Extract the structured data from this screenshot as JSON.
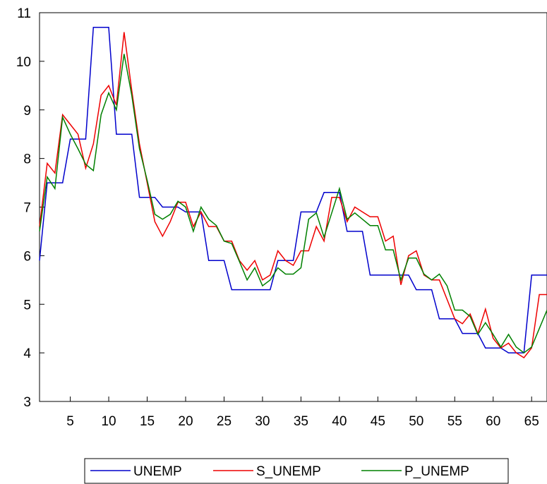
{
  "chart_data": {
    "type": "line",
    "title": "",
    "xlabel": "",
    "ylabel": "",
    "x": [
      1,
      2,
      3,
      4,
      5,
      6,
      7,
      8,
      9,
      10,
      11,
      12,
      13,
      14,
      15,
      16,
      17,
      18,
      19,
      20,
      21,
      22,
      23,
      24,
      25,
      26,
      27,
      28,
      29,
      30,
      31,
      32,
      33,
      34,
      35,
      36,
      37,
      38,
      39,
      40,
      41,
      42,
      43,
      44,
      45,
      46,
      47,
      48,
      49,
      50,
      51,
      52,
      53,
      54,
      55,
      56,
      57,
      58,
      59,
      60,
      61,
      62,
      63,
      64,
      65,
      66,
      67
    ],
    "xlim": [
      1,
      67
    ],
    "ylim": [
      3,
      11
    ],
    "x_ticks": [
      5,
      10,
      15,
      20,
      25,
      30,
      35,
      40,
      45,
      50,
      55,
      60,
      65
    ],
    "y_ticks": [
      3,
      4,
      5,
      6,
      7,
      8,
      9,
      10,
      11
    ],
    "x_tick_labels": [
      "5",
      "10",
      "15",
      "20",
      "25",
      "30",
      "35",
      "40",
      "45",
      "50",
      "55",
      "60",
      "65"
    ],
    "y_tick_labels": [
      "3",
      "4",
      "5",
      "6",
      "7",
      "8",
      "9",
      "10",
      "11"
    ],
    "grid": false,
    "legend_position": "bottom-center",
    "series": [
      {
        "name": "UNEMP",
        "color": "#0000cc",
        "values": [
          5.9,
          7.5,
          7.5,
          7.5,
          8.4,
          8.4,
          8.4,
          10.7,
          10.7,
          10.7,
          8.5,
          8.5,
          8.5,
          7.2,
          7.2,
          7.2,
          7.0,
          7.0,
          7.0,
          6.9,
          6.9,
          6.9,
          5.9,
          5.9,
          5.9,
          5.3,
          5.3,
          5.3,
          5.3,
          5.3,
          5.3,
          5.9,
          5.9,
          5.9,
          6.9,
          6.9,
          6.9,
          7.3,
          7.3,
          7.3,
          6.5,
          6.5,
          6.5,
          5.6,
          5.6,
          5.6,
          5.6,
          5.6,
          5.6,
          5.3,
          5.3,
          5.3,
          4.7,
          4.7,
          4.7,
          4.4,
          4.4,
          4.4,
          4.1,
          4.1,
          4.1,
          4.0,
          4.0,
          4.0,
          5.6,
          5.6,
          5.6
        ]
      },
      {
        "name": "S_UNEMP",
        "color": "#ee0000",
        "values": [
          6.6,
          7.9,
          7.7,
          8.9,
          8.7,
          8.5,
          7.8,
          8.3,
          9.3,
          9.5,
          9.1,
          10.6,
          9.4,
          8.3,
          7.5,
          6.7,
          6.4,
          6.7,
          7.1,
          7.1,
          6.6,
          6.9,
          6.6,
          6.6,
          6.3,
          6.3,
          5.9,
          5.7,
          5.9,
          5.5,
          5.6,
          6.1,
          5.9,
          5.8,
          6.1,
          6.1,
          6.6,
          6.3,
          7.2,
          7.2,
          6.7,
          7.0,
          6.9,
          6.8,
          6.8,
          6.3,
          6.4,
          5.4,
          6.0,
          6.1,
          5.6,
          5.5,
          5.5,
          5.1,
          4.7,
          4.6,
          4.8,
          4.4,
          4.9,
          4.3,
          4.1,
          4.2,
          4.0,
          3.9,
          4.1,
          5.2,
          5.2
        ]
      },
      {
        "name": "P_UNEMP",
        "color": "#008000",
        "values": [
          6.5,
          7.62,
          7.38,
          8.85,
          8.5,
          8.2,
          7.88,
          7.75,
          8.9,
          9.35,
          9.0,
          10.15,
          9.3,
          8.2,
          7.55,
          6.85,
          6.75,
          6.85,
          7.12,
          7.0,
          6.5,
          7.0,
          6.75,
          6.62,
          6.3,
          6.25,
          5.88,
          5.5,
          5.75,
          5.38,
          5.5,
          5.75,
          5.62,
          5.62,
          5.75,
          6.75,
          6.88,
          6.38,
          6.88,
          7.38,
          6.75,
          6.88,
          6.75,
          6.62,
          6.62,
          6.12,
          6.12,
          5.5,
          5.95,
          5.95,
          5.62,
          5.5,
          5.62,
          5.38,
          4.88,
          4.88,
          4.75,
          4.38,
          4.62,
          4.38,
          4.12,
          4.38,
          4.12,
          4.0,
          4.12,
          4.5,
          4.88
        ]
      }
    ]
  }
}
